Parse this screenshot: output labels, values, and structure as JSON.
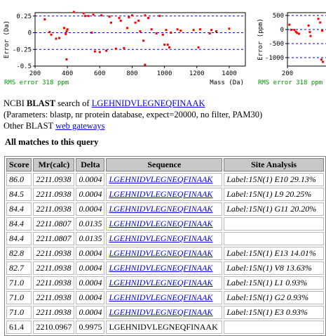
{
  "plot_main": {
    "ylabel": "Error (Da)",
    "xlabel": "Mass (Da)",
    "rms_label": "RMS error 318 ppm",
    "y_ticks": [
      "0.25",
      "0",
      "-0.25",
      "-0.5"
    ],
    "x_ticks": [
      "200",
      "400",
      "600",
      "800",
      "1000",
      "1200",
      "1400"
    ],
    "xlim": [
      200,
      1500
    ],
    "ylim": [
      -0.5,
      0.3
    ],
    "points": [
      [
        260,
        0.2
      ],
      [
        290,
        0.01
      ],
      [
        300,
        -0.03
      ],
      [
        330,
        -0.09
      ],
      [
        350,
        -0.08
      ],
      [
        380,
        0.07
      ],
      [
        390,
        -0.02
      ],
      [
        395,
        0.02
      ],
      [
        400,
        0.05
      ],
      [
        440,
        0.31
      ],
      [
        500,
        0.29
      ],
      [
        510,
        0.25
      ],
      [
        530,
        0.25
      ],
      [
        550,
        0.0
      ],
      [
        560,
        0.27
      ],
      [
        570,
        -0.28
      ],
      [
        600,
        -0.29
      ],
      [
        610,
        0.26
      ],
      [
        640,
        -0.27
      ],
      [
        660,
        0.24
      ],
      [
        670,
        0.15
      ],
      [
        700,
        -0.24
      ],
      [
        720,
        0.22
      ],
      [
        730,
        0.18
      ],
      [
        750,
        -0.23
      ],
      [
        770,
        0.07
      ],
      [
        780,
        0.23
      ],
      [
        800,
        0.26
      ],
      [
        820,
        0.15
      ],
      [
        840,
        0.18
      ],
      [
        850,
        0.02
      ],
      [
        870,
        -0.12
      ],
      [
        880,
        0.26
      ],
      [
        900,
        0.22
      ],
      [
        920,
        0.05
      ],
      [
        950,
        -0.01
      ],
      [
        970,
        0.25
      ],
      [
        990,
        -0.03
      ],
      [
        1000,
        -0.18
      ],
      [
        1010,
        0.04
      ],
      [
        1020,
        -0.18
      ],
      [
        1030,
        -0.22
      ],
      [
        1040,
        0.0
      ],
      [
        1080,
        0.05
      ],
      [
        1100,
        0.03
      ],
      [
        1180,
        0.04
      ],
      [
        1220,
        0.05
      ],
      [
        1280,
        -0.01
      ],
      [
        1320,
        0.02
      ],
      [
        1400,
        0.06
      ],
      [
        880,
        -0.48
      ],
      [
        395,
        -0.4
      ],
      [
        1210,
        -0.22
      ],
      [
        1290,
        0.04
      ]
    ]
  },
  "plot_small": {
    "ylabel": "Error (ppm)",
    "rms_label": "RMS error 318 ppm",
    "y_ticks": [
      "500",
      "0",
      "-500",
      "-1000"
    ],
    "x_ticks": [
      "200"
    ],
    "ylim": [
      -1300,
      600
    ],
    "points": [
      [
        5,
        170
      ],
      [
        10,
        -10
      ],
      [
        18,
        -15
      ],
      [
        22,
        -80
      ],
      [
        25,
        -120
      ],
      [
        30,
        -150
      ],
      [
        55,
        140
      ],
      [
        58,
        -90
      ],
      [
        60,
        -230
      ],
      [
        80,
        380
      ],
      [
        85,
        250
      ],
      [
        90,
        -40
      ],
      [
        92,
        -1150
      ],
      [
        88,
        -1070
      ]
    ]
  },
  "blast": {
    "ncbi": "NCBI",
    "blast_word": "BLAST",
    "search_of": "search of",
    "query": "LGEHNIDVLEGNEQFINAAK",
    "params": "(Parameters: blastp, nr protein database, expect=20000, no filter, PAM30)",
    "other_prefix": "Other BLAST",
    "gateways": "web gateways"
  },
  "section_title": "All matches to this query",
  "table": {
    "headers": [
      "Score",
      "Mr(calc)",
      "Delta",
      "Sequence",
      "Site Analysis"
    ],
    "rows": [
      {
        "score": "86.0",
        "mr": "2211.0938",
        "delta": "0.0004",
        "seq": "LGEHNIDVLEGNEQFINAAK",
        "site": "Label:15N(1) E10 29.13%"
      },
      {
        "score": "84.5",
        "mr": "2211.0938",
        "delta": "0.0004",
        "seq": "LGEHNIDVLEGNEQFINAAK",
        "site": "Label:15N(1) L9 20.25%"
      },
      {
        "score": "84.4",
        "mr": "2211.0938",
        "delta": "0.0004",
        "seq": "LGEHNIDVLEGNEQFINAAK",
        "site": "Label:15N(1) G11 20.20%"
      },
      {
        "score": "84.4",
        "mr": "2211.0807",
        "delta": "0.0135",
        "seq": "LGEHNIDVLEGNEQFINAAK",
        "site": ""
      },
      {
        "score": "84.4",
        "mr": "2211.0807",
        "delta": "0.0135",
        "seq": "LGEHNIDVLEGNEQFINAAK",
        "site": ""
      },
      {
        "score": "82.8",
        "mr": "2211.0938",
        "delta": "0.0004",
        "seq": "LGEHNIDVLEGNEQFINAAK",
        "site": "Label:15N(1) E13 14.01%"
      },
      {
        "score": "82.7",
        "mr": "2211.0938",
        "delta": "0.0004",
        "seq": "LGEHNIDVLEGNEQFINAAK",
        "site": "Label:15N(1) V8 13.63%"
      },
      {
        "score": "71.0",
        "mr": "2211.0938",
        "delta": "0.0004",
        "seq": "LGEHNIDVLEGNEQFINAAK",
        "site": "Label:15N(1) L1 0.93%"
      },
      {
        "score": "71.0",
        "mr": "2211.0938",
        "delta": "0.0004",
        "seq": "LGEHNIDVLEGNEQFINAAK",
        "site": "Label:15N(1) G2 0.93%"
      },
      {
        "score": "71.0",
        "mr": "2211.0938",
        "delta": "0.0004",
        "seq": "LGEHNIDVLEGNEQFINAAK",
        "site": "Label:15N(1) E3 0.93%"
      },
      {
        "score": "61.4",
        "mr": "2210.0967",
        "delta": "0.9975",
        "seq": "LGEHNIDVLEGNEQFINAAK",
        "site": "",
        "plain": true
      }
    ]
  },
  "colors": {
    "point": "#ff0000",
    "axis": "#000000",
    "dashed": "#0000cc",
    "rms": "#009900"
  }
}
